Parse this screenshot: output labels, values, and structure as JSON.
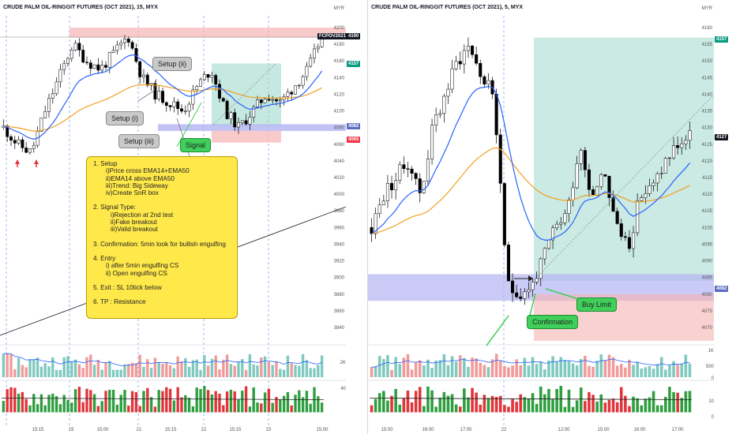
{
  "left": {
    "title": "CRUDE PALM OIL-RINGGIT FUTURES (OCT 2021), 15, MYX",
    "currency": "MYR",
    "price_ticks": [
      "4200",
      "4180",
      "4160",
      "4140",
      "4120",
      "4100",
      "4080",
      "4060",
      "4040",
      "4020",
      "4000",
      "3980",
      "3960",
      "3940",
      "3920",
      "3900",
      "3880",
      "3860",
      "3840"
    ],
    "volume_tick": "2K",
    "indicator_tick": "40",
    "time_ticks": [
      "15:15",
      "19",
      "15:00",
      "21",
      "15:15",
      "22",
      "15:15",
      "23",
      "15:00"
    ],
    "tags": {
      "symbol": "FCPOV2021",
      "last": "4190",
      "tp": "4157",
      "entry": "4082",
      "sl": "4065"
    },
    "callouts": {
      "setup_ii": "Setup (ii)",
      "setup_i": "Setup (i)",
      "setup_iii": "Setup (iii)",
      "signal": "Signal"
    },
    "note": {
      "l1": "1. Setup",
      "l2": "i)Price cross EMA14+EMA50",
      "l3": "ii)EMA14 above EMA50",
      "l4": "iii)Trend: Big Sideway",
      "l5": "iv)Create SnR box",
      "l6": "2. Signal Type:",
      "l7": "i)Rejection at 2nd test",
      "l8": "ii)Fake breakout",
      "l9": "iii)Valid breakout",
      "l10": "3. Confirmation: 5min look for bullish engulfing",
      "l11": "4. Entry",
      "l12": "i) after 5min engulfing CS",
      "l13": "ii) Open engulfing CS",
      "l14": "5. Exit : SL 10tick below",
      "l15": "6. TP : Resistance"
    }
  },
  "right": {
    "title": "CRUDE PALM OIL-RINGGIT FUTURES (OCT 2021), 5, MYX",
    "currency": "MYR",
    "price_ticks": [
      "4160",
      "4155",
      "4150",
      "4145",
      "4140",
      "4135",
      "4130",
      "4125",
      "4120",
      "4115",
      "4110",
      "4105",
      "4100",
      "4095",
      "4090",
      "4085",
      "4080",
      "4075",
      "4070"
    ],
    "volume_ticks": [
      "1K",
      "500",
      "0"
    ],
    "indicator_ticks": [
      "10",
      "0"
    ],
    "time_ticks": [
      "15:00",
      "16:00",
      "17:00",
      "22",
      "12:00",
      "15:00",
      "16:00",
      "17:00"
    ],
    "tags": {
      "tp": "4157",
      "last": "4127",
      "entry": "4082"
    },
    "callouts": {
      "confirmation": "Confirmation",
      "buy_limit": "Buy Limit"
    }
  },
  "colors": {
    "bull": "#ffffff",
    "bear": "#000000",
    "ema14": "#2962ff",
    "ema50": "#f0a020",
    "tp_zone": "#9fd8cc",
    "sl_zone": "#f6b3b3",
    "entry_zone": "#b3b3f2",
    "tag_green": "#089981",
    "tag_red": "#f23645",
    "tag_blue": "#5c6bc0",
    "tag_black": "#131722"
  }
}
